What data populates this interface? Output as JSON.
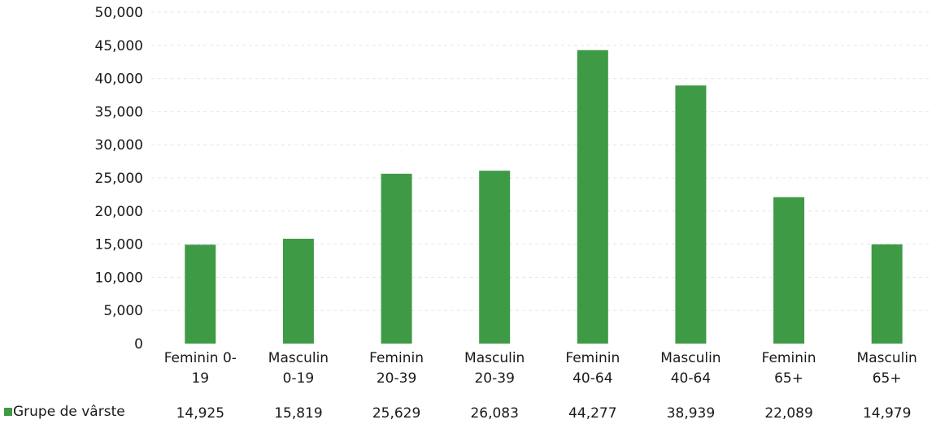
{
  "chart_data": {
    "type": "bar",
    "categories": [
      [
        "Feminin 0-",
        "19"
      ],
      [
        "Masculin",
        "0-19"
      ],
      [
        "Feminin",
        "20-39"
      ],
      [
        "Masculin",
        "20-39"
      ],
      [
        "Feminin",
        "40-64"
      ],
      [
        "Masculin",
        "40-64"
      ],
      [
        "Feminin",
        "65+"
      ],
      [
        "Masculin",
        "65+"
      ]
    ],
    "series": [
      {
        "name": "Grupe de vârste",
        "values": [
          14925,
          15819,
          25629,
          26083,
          44277,
          38939,
          22089,
          14979
        ],
        "value_labels": [
          "14,925",
          "15,819",
          "25,629",
          "26,083",
          "44,277",
          "38,939",
          "22,089",
          "14,979"
        ],
        "color": "#3f9a45"
      }
    ],
    "ylim": [
      0,
      50000
    ],
    "yticks": [
      0,
      5000,
      10000,
      15000,
      20000,
      25000,
      30000,
      35000,
      40000,
      45000,
      50000
    ],
    "ytick_labels": [
      "0",
      "5,000",
      "10,000",
      "15,000",
      "20,000",
      "25,000",
      "30,000",
      "35,000",
      "40,000",
      "45,000",
      "50,000"
    ],
    "title": "",
    "xlabel": "",
    "ylabel": "",
    "grid": true,
    "legend": "bottom-left",
    "data_table": true
  }
}
